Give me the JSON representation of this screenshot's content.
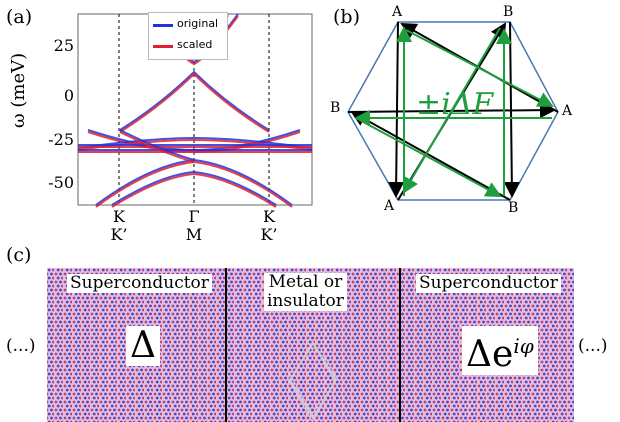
{
  "panel_labels": {
    "a": "(a)",
    "b": "(b)",
    "c": "(c)"
  },
  "panel_a": {
    "ylabel": "ω (meV)",
    "yticks": [
      "25",
      "0",
      "-25",
      "-50"
    ],
    "xticks": [
      {
        "top": "K",
        "bottom": "K’"
      },
      {
        "top": "Γ",
        "bottom": "M"
      },
      {
        "top": "K",
        "bottom": "K’"
      }
    ],
    "legend": [
      {
        "label": "original",
        "color": "#2233dd"
      },
      {
        "label": "scaled",
        "color": "#e02030"
      }
    ]
  },
  "panel_b": {
    "vertices": [
      "A",
      "B",
      "A",
      "B",
      "A",
      "B"
    ],
    "center_label": "±iΔF",
    "colors": {
      "hexagon": "#4a78b0",
      "black_arrows": "#000000",
      "green_arrows": "#1e9e3c"
    }
  },
  "panel_c": {
    "regions": [
      {
        "label": "Superconductor",
        "symbol": "Δ"
      },
      {
        "label_line1": "Metal or",
        "label_line2": "insulator"
      },
      {
        "label": "Superconductor",
        "symbol": "Δe",
        "symbol_sup": "iφ"
      }
    ],
    "ellipsis_left": "(...)",
    "ellipsis_right": "(...)",
    "colors": {
      "lattice_a": "#d03a6a",
      "lattice_b": "#5a3ec8",
      "cell": "#cfcfcf"
    }
  }
}
